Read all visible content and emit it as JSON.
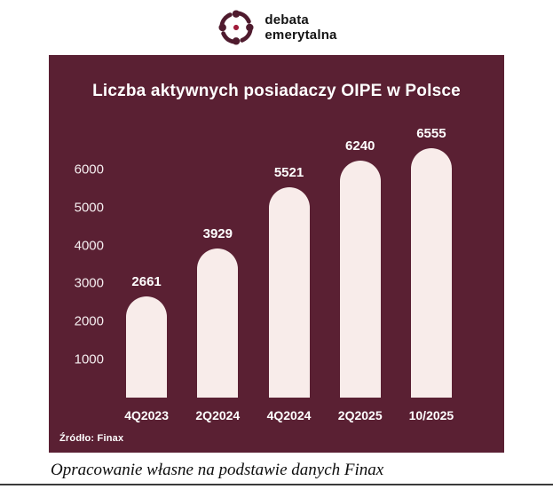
{
  "logo": {
    "line1": "debata",
    "line2": "emerytalna"
  },
  "chart_data": {
    "type": "bar",
    "title": "Liczba aktywnych posiadaczy OIPE w Polsce",
    "categories": [
      "4Q2023",
      "2Q2024",
      "4Q2024",
      "2Q2025",
      "10/2025"
    ],
    "values": [
      2661,
      3929,
      5521,
      6240,
      6555
    ],
    "yticks": [
      1000,
      2000,
      3000,
      4000,
      5000,
      6000
    ],
    "ylim": [
      0,
      7000
    ],
    "grid": false,
    "legend": false,
    "source": "Źródło: Finax",
    "colors": {
      "background": "#5a2033",
      "bar": "#f8ecea",
      "text": "#ffffff",
      "logo": "#4f1b2e",
      "logo_accent": "#a11c3a"
    }
  },
  "caption": "Opracowanie własne na podstawie danych Finax"
}
